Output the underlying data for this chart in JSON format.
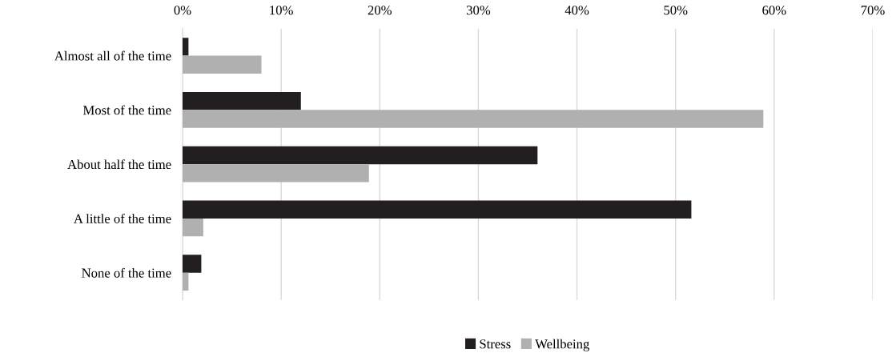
{
  "chart_data": {
    "type": "bar",
    "orientation": "horizontal",
    "categories": [
      "Almost all of the time",
      "Most of the time",
      "About half the time",
      "A little of the time",
      "None of the time"
    ],
    "series": [
      {
        "name": "Stress",
        "color": "#231f20",
        "values": [
          0.6,
          12.0,
          36.0,
          51.6,
          1.9
        ]
      },
      {
        "name": "Wellbeing",
        "color": "#b0b0b0",
        "values": [
          8.0,
          58.9,
          18.9,
          2.1,
          0.6
        ]
      }
    ],
    "xlim": [
      0,
      70
    ],
    "xticks": [
      {
        "value": 0,
        "label": "0%"
      },
      {
        "value": 10,
        "label": "10%"
      },
      {
        "value": 20,
        "label": "20%"
      },
      {
        "value": 30,
        "label": "30%"
      },
      {
        "value": 40,
        "label": "40%"
      },
      {
        "value": 50,
        "label": "50%"
      },
      {
        "value": 60,
        "label": "60%"
      },
      {
        "value": 70,
        "label": "70%"
      }
    ],
    "grid": "x",
    "legend": "bottom"
  }
}
